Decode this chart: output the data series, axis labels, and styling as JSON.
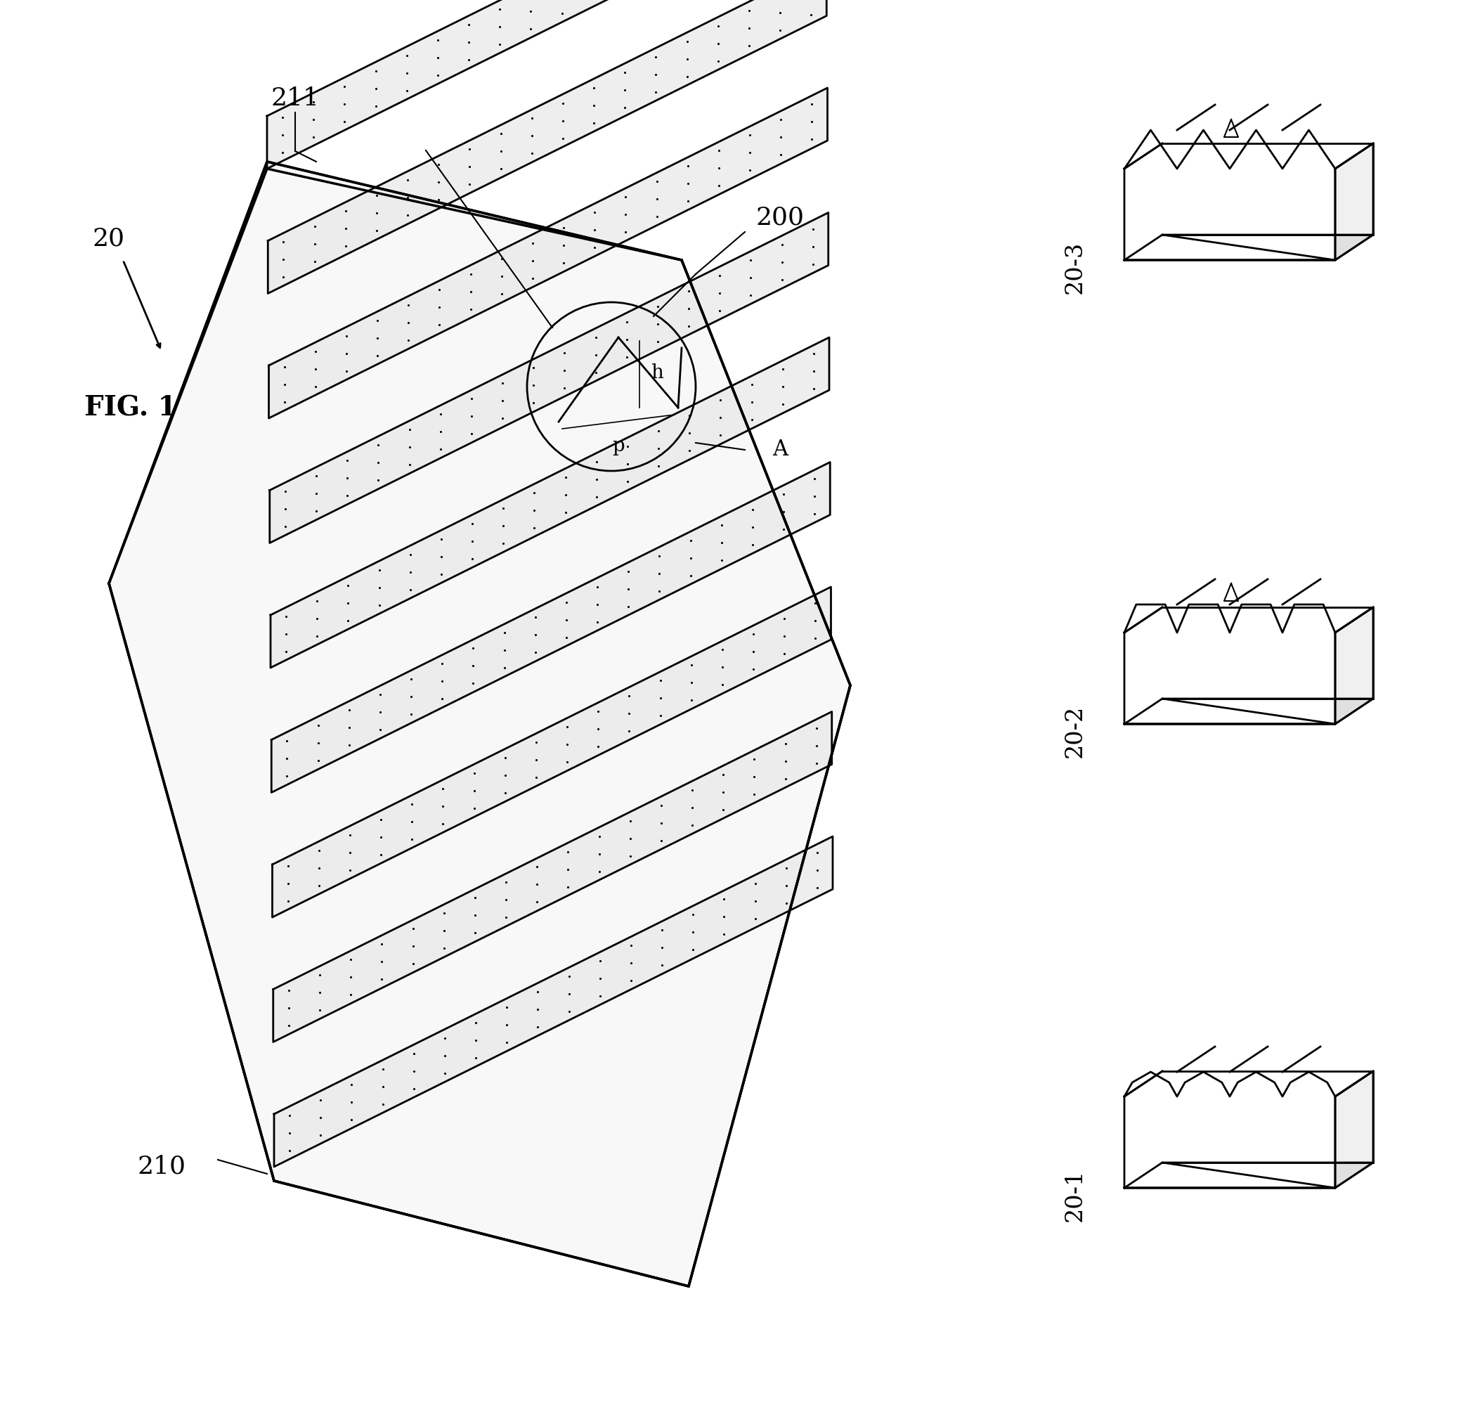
{
  "title": "FIG. 1",
  "bg_color": "#ffffff",
  "line_color": "#000000",
  "fig_label": "FIG. 1",
  "label_20": "20",
  "label_200": "200",
  "label_210": "210",
  "label_211": "211",
  "label_p": "p",
  "label_h": "h",
  "label_A": "A",
  "label_20_1": "20-1",
  "label_20_2": "20-2",
  "label_20_3": "20-3"
}
